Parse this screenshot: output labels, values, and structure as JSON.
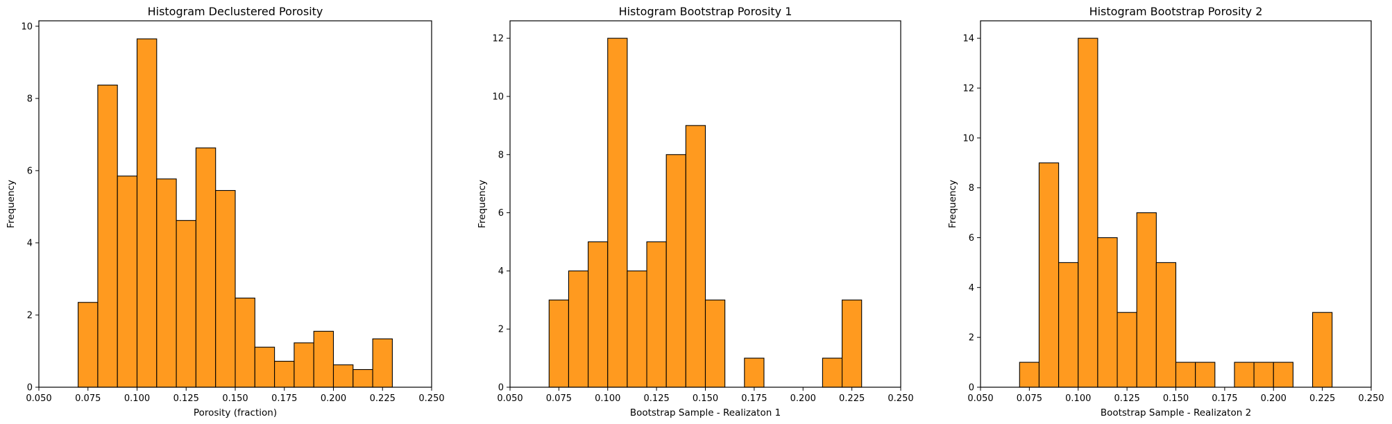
{
  "chart_data": [
    {
      "type": "bar",
      "title": "Histogram Declustered Porosity",
      "xlabel": "Porosity (fraction)",
      "ylabel": "Frequency",
      "xlim": [
        0.05,
        0.25
      ],
      "ylim": [
        0,
        10.15
      ],
      "xticks": [
        "0.050",
        "0.075",
        "0.100",
        "0.125",
        "0.150",
        "0.175",
        "0.200",
        "0.225",
        "0.250"
      ],
      "yticks": [
        "0",
        "2",
        "4",
        "6",
        "8",
        "10"
      ],
      "bin_edges": [
        0.07,
        0.08,
        0.09,
        0.1,
        0.11,
        0.12,
        0.13,
        0.14,
        0.15,
        0.16,
        0.17,
        0.18,
        0.19,
        0.2,
        0.21,
        0.22,
        0.23
      ],
      "values": [
        2.35,
        8.37,
        5.85,
        9.65,
        5.77,
        4.62,
        6.63,
        5.45,
        2.47,
        1.11,
        0.72,
        1.23,
        1.55,
        0.62,
        0.49,
        1.34
      ],
      "bar_color": "#ff9a1f",
      "edge_color": "#000000",
      "grid": false
    },
    {
      "type": "bar",
      "title": "Histogram Bootstrap Porosity 1",
      "xlabel": "Bootstrap Sample - Realizaton 1",
      "ylabel": "Frequency",
      "xlim": [
        0.05,
        0.25
      ],
      "ylim": [
        0,
        12.6
      ],
      "xticks": [
        "0.050",
        "0.075",
        "0.100",
        "0.125",
        "0.150",
        "0.175",
        "0.200",
        "0.225",
        "0.250"
      ],
      "yticks": [
        "0",
        "2",
        "4",
        "6",
        "8",
        "10",
        "12"
      ],
      "bin_edges": [
        0.07,
        0.08,
        0.09,
        0.1,
        0.11,
        0.12,
        0.13,
        0.14,
        0.15,
        0.16,
        0.17,
        0.18,
        0.19,
        0.2,
        0.21,
        0.22,
        0.23
      ],
      "values": [
        3,
        4,
        5,
        12,
        4,
        5,
        8,
        9,
        3,
        0,
        1,
        0,
        0,
        0,
        1,
        3
      ],
      "bar_color": "#ff9a1f",
      "edge_color": "#000000",
      "grid": false
    },
    {
      "type": "bar",
      "title": "Histogram Bootstrap Porosity 2",
      "xlabel": "Bootstrap Sample - Realizaton 2",
      "ylabel": "Frequency",
      "xlim": [
        0.05,
        0.25
      ],
      "ylim": [
        0,
        14.7
      ],
      "xticks": [
        "0.050",
        "0.075",
        "0.100",
        "0.125",
        "0.150",
        "0.175",
        "0.200",
        "0.225",
        "0.250"
      ],
      "yticks": [
        "0",
        "2",
        "4",
        "6",
        "8",
        "10",
        "12",
        "14"
      ],
      "bin_edges": [
        0.07,
        0.08,
        0.09,
        0.1,
        0.11,
        0.12,
        0.13,
        0.14,
        0.15,
        0.16,
        0.17,
        0.18,
        0.19,
        0.2,
        0.21,
        0.22,
        0.23
      ],
      "values": [
        1,
        9,
        5,
        14,
        6,
        3,
        7,
        5,
        1,
        1,
        0,
        1,
        1,
        1,
        0,
        3
      ],
      "bar_color": "#ff9a1f",
      "edge_color": "#000000",
      "grid": false
    }
  ]
}
